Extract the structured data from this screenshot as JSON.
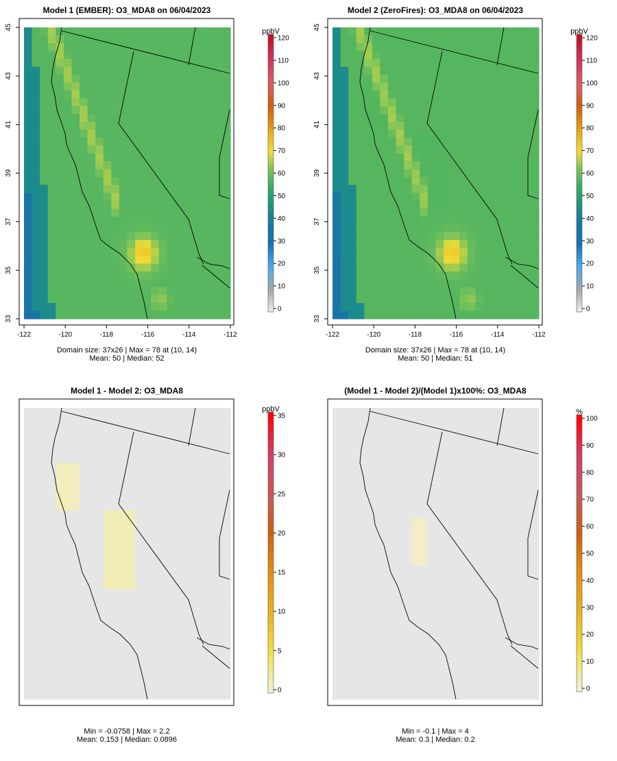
{
  "chart_data": [
    {
      "type": "heatmap",
      "title": "Model 1 (EMBER): O3_MDA8 on 06/04/2023",
      "legend_title": "ppbV",
      "xlim": [
        -122,
        -112
      ],
      "ylim": [
        33,
        45
      ],
      "x_ticks": [
        "-122",
        "-120",
        "-118",
        "-116",
        "-114",
        "-112"
      ],
      "y_ticks": [
        "33",
        "35",
        "37",
        "39",
        "41",
        "43",
        "45"
      ],
      "colorbar_ticks": [
        "0",
        "10",
        "20",
        "30",
        "40",
        "50",
        "60",
        "70",
        "80",
        "90",
        "100",
        "110",
        "120"
      ],
      "color_range": [
        0,
        120
      ],
      "palette": "ozone",
      "approx_peak_value": 78,
      "stats_line1": "Domain size: 37x26 | Max = 78 at (10, 14)",
      "stats_line2": "Mean: 50 |  Median: 52"
    },
    {
      "type": "heatmap",
      "title": "Model 2 (ZeroFires): O3_MDA8 on 06/04/2023",
      "legend_title": "ppbV",
      "xlim": [
        -122,
        -112
      ],
      "ylim": [
        33,
        45
      ],
      "x_ticks": [
        "-122",
        "-120",
        "-118",
        "-116",
        "-114",
        "-112"
      ],
      "y_ticks": [
        "33",
        "35",
        "37",
        "39",
        "41",
        "43",
        "45"
      ],
      "colorbar_ticks": [
        "0",
        "10",
        "20",
        "30",
        "40",
        "50",
        "60",
        "70",
        "80",
        "90",
        "100",
        "110",
        "120"
      ],
      "color_range": [
        0,
        120
      ],
      "palette": "ozone",
      "approx_peak_value": 78,
      "stats_line1": "Domain size: 37x26 | Max = 78 at (10, 14)",
      "stats_line2": "Mean: 50 |  Median: 51"
    },
    {
      "type": "heatmap",
      "title": "Model 1 - Model 2: O3_MDA8",
      "legend_title": "ppbV",
      "colorbar_ticks": [
        "0",
        "5",
        "10",
        "15",
        "20",
        "25",
        "30",
        "35"
      ],
      "color_range": [
        0,
        35
      ],
      "palette": "difference",
      "stats_line1": "Min = -0.0758 | Max = 2.2",
      "stats_line2": "Mean: 0.153 |  Median: 0.0896"
    },
    {
      "type": "heatmap",
      "title": "(Model 1 - Model 2)/(Model 1)x100%: O3_MDA8",
      "legend_title": "%",
      "colorbar_ticks": [
        "0",
        "10",
        "20",
        "30",
        "40",
        "50",
        "60",
        "70",
        "80",
        "90",
        "100"
      ],
      "color_range": [
        0,
        100
      ],
      "palette": "difference",
      "stats_line1": "Min = -0.1 | Max = 4",
      "stats_line2": "Mean: 0.3 |  Median: 0.2"
    }
  ],
  "colors": {
    "background_field": "#e6e6e6",
    "border_lines": "#000000",
    "ocean_low": "#1a73a8",
    "inland_mid": "#3aa572",
    "valley_high": "#f2d33a",
    "peak": "#d98a10"
  }
}
